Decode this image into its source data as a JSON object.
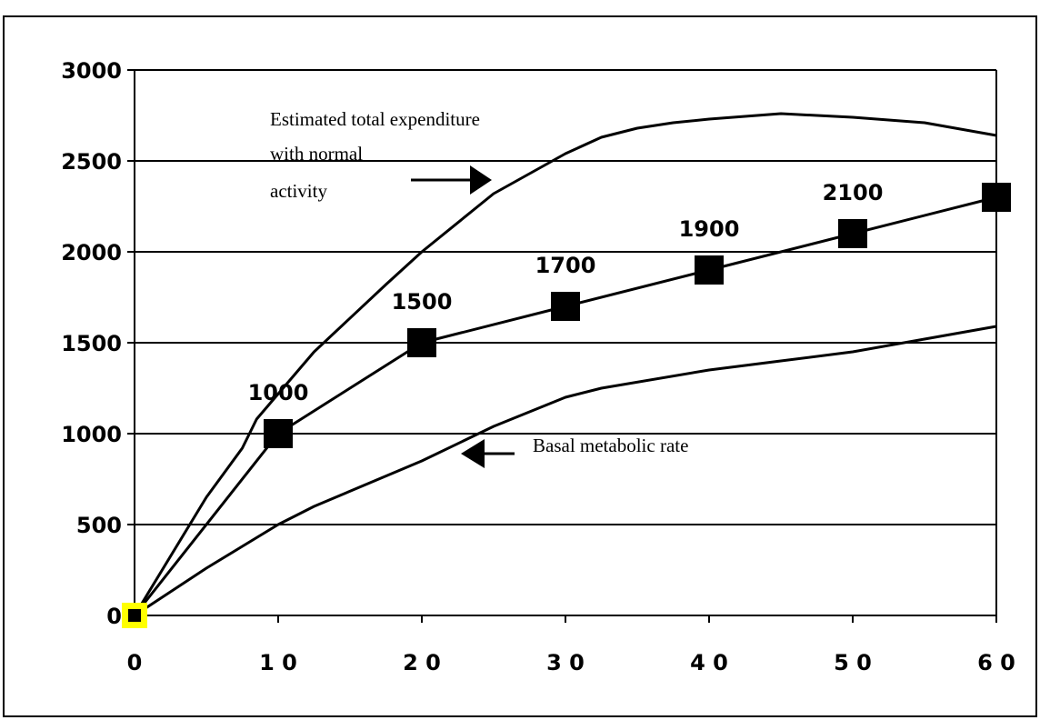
{
  "chart_data": {
    "type": "line",
    "title": "",
    "xlabel": "",
    "ylabel": "",
    "xlim": [
      0,
      60
    ],
    "ylim": [
      0,
      3000
    ],
    "x_ticks": [
      0,
      10,
      20,
      30,
      40,
      50,
      60
    ],
    "y_ticks": [
      0,
      500,
      1000,
      1500,
      2000,
      2500,
      3000
    ],
    "x_tick_labels": [
      "0",
      "1 0",
      "2 0",
      "3 0",
      "4 0",
      "5 0",
      "6 0"
    ],
    "y_tick_labels": [
      "0",
      "500",
      "1000",
      "1500",
      "2000",
      "2500",
      "3000"
    ],
    "grid": "horizontal",
    "series": [
      {
        "name": "Estimated total expenditure with normal activity",
        "x": [
          0,
          5,
          7.5,
          8.5,
          12.5,
          17.5,
          20,
          25,
          30,
          32.5,
          35,
          37.5,
          40,
          45,
          50,
          55,
          60
        ],
        "y": [
          0,
          650,
          920,
          1080,
          1450,
          1820,
          2000,
          2320,
          2540,
          2630,
          2680,
          2710,
          2730,
          2760,
          2740,
          2710,
          2640
        ]
      },
      {
        "name": "",
        "x": [
          0,
          10,
          20,
          30,
          40,
          50,
          60
        ],
        "y": [
          0,
          1000,
          1500,
          1700,
          1900,
          2100,
          2300
        ],
        "markers": "square",
        "point_labels": [
          "",
          "1000",
          "1500",
          "1700",
          "1900",
          "2100",
          ""
        ]
      },
      {
        "name": "Basal metabolic rate",
        "x": [
          0,
          5,
          7.5,
          10,
          12.5,
          20,
          25,
          30,
          32.5,
          40,
          45,
          50,
          55,
          60
        ],
        "y": [
          0,
          260,
          380,
          500,
          600,
          850,
          1040,
          1200,
          1250,
          1350,
          1400,
          1450,
          1520,
          1590
        ]
      }
    ],
    "annotations": [
      {
        "lines": [
          "Estimated total expenditure",
          "with normal",
          "activity"
        ]
      },
      {
        "lines": [
          "Basal metabolic rate"
        ]
      }
    ],
    "origin_highlight_color": "#ffff00",
    "line_color": "#000000"
  },
  "title_strip_text": ""
}
